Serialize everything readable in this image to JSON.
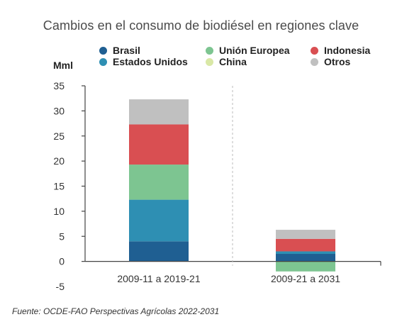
{
  "chart_data": {
    "type": "bar",
    "stacked": true,
    "title": "Cambios en el consumo de biodiésel en regiones clave",
    "ylabel": "Mml",
    "xlabel": "",
    "ylim": [
      -5,
      35
    ],
    "yticks": [
      35,
      30,
      25,
      20,
      15,
      10,
      5,
      0,
      -5
    ],
    "categories": [
      "2009-11 a 2019-21",
      "2009-21 a 2031"
    ],
    "series": [
      {
        "name": "Brasil",
        "color": "#1f5f92",
        "values": [
          4.0,
          1.5
        ]
      },
      {
        "name": "Estados Unidos",
        "color": "#2e8fb3",
        "values": [
          8.3,
          0.5
        ]
      },
      {
        "name": "Unión Europea",
        "color": "#7dc591",
        "values": [
          7.0,
          -2.0
        ]
      },
      {
        "name": "China",
        "color": "#d9e8a6",
        "values": [
          0.0,
          0.0
        ]
      },
      {
        "name": "Indonesia",
        "color": "#d94f52",
        "values": [
          8.0,
          2.5
        ]
      },
      {
        "name": "Otros",
        "color": "#c0c0c0",
        "values": [
          5.0,
          1.8
        ]
      }
    ],
    "legend_position": "top",
    "grid": "vertical dashed separator between categories"
  },
  "source": "Fuente: OCDE-FAO Perspectivas Agrícolas 2022-2031"
}
